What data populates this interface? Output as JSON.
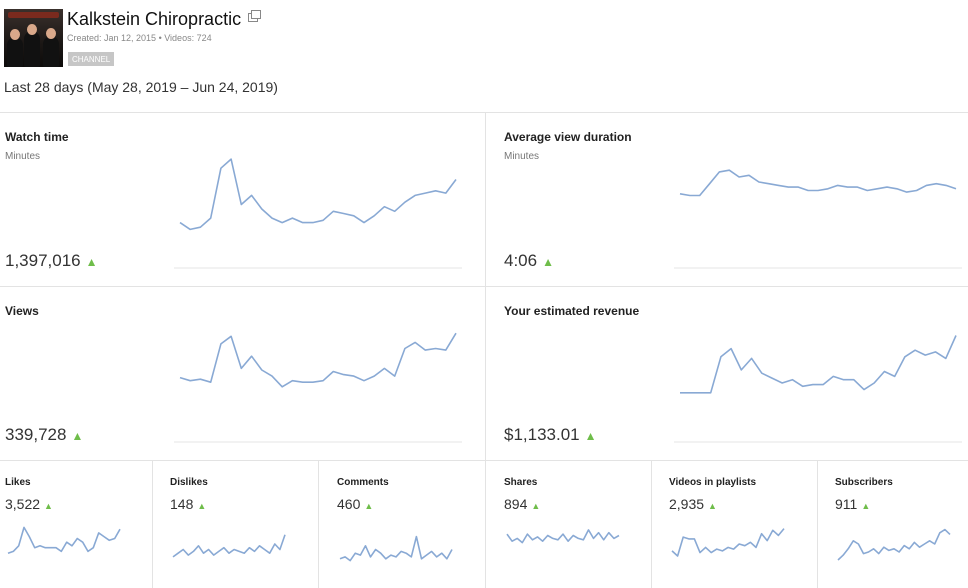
{
  "channel": {
    "name": "Kalkstein Chiropractic",
    "meta": "Created: Jan 12, 2015  •  Videos: 724",
    "badge": "CHANNEL"
  },
  "date_range": "Last 28 days (May 28, 2019 – Jun 24, 2019)",
  "trend_icon": "triangle-up-icon",
  "colors": {
    "line": "#89a9d4",
    "trend_up": "#6fbd4a",
    "divider": "#e3e3e3"
  },
  "cards": [
    {
      "title": "Watch time",
      "subtitle": "Minutes",
      "value": "1,397,016",
      "trend": "▲",
      "spark": [
        60,
        57,
        58,
        62,
        84,
        88,
        68,
        72,
        66,
        62,
        60,
        62,
        60,
        60,
        61,
        65,
        64,
        63,
        60,
        63,
        67,
        65,
        69,
        72,
        73,
        74,
        73,
        79
      ]
    },
    {
      "title": "Average view duration",
      "subtitle": "Minutes",
      "value": "4:06",
      "trend": "▲",
      "spark": [
        44,
        43,
        43,
        50,
        57,
        58,
        54,
        55,
        51,
        50,
        49,
        48,
        48,
        46,
        46,
        47,
        49,
        48,
        48,
        46,
        47,
        48,
        47,
        45,
        46,
        49,
        50,
        49,
        47
      ]
    },
    {
      "title": "Views",
      "subtitle": "",
      "value": "339,728",
      "trend": "▲",
      "spark": [
        42,
        40,
        41,
        39,
        64,
        69,
        48,
        56,
        47,
        43,
        36,
        40,
        39,
        39,
        40,
        46,
        44,
        43,
        40,
        43,
        48,
        43,
        61,
        65,
        60,
        61,
        60,
        71
      ]
    },
    {
      "title": "Your estimated revenue",
      "subtitle": "",
      "value": "$1,133.01",
      "trend": "▲",
      "spark": [
        30,
        30,
        30,
        30,
        52,
        57,
        44,
        51,
        42,
        39,
        36,
        38,
        34,
        35,
        35,
        40,
        38,
        38,
        32,
        36,
        43,
        40,
        52,
        56,
        53,
        55,
        51,
        65
      ]
    }
  ],
  "small_cards": [
    {
      "title": "Likes",
      "value": "3,522",
      "trend": "▲",
      "spark": [
        8,
        9,
        12,
        22,
        17,
        11,
        12,
        11,
        11,
        11,
        9,
        14,
        12,
        16,
        14,
        9,
        11,
        19,
        17,
        15,
        16,
        21
      ]
    },
    {
      "title": "Dislikes",
      "value": "148",
      "trend": "▲",
      "spark": [
        6,
        8,
        10,
        7,
        9,
        12,
        8,
        10,
        7,
        9,
        11,
        8,
        10,
        9,
        8,
        11,
        9,
        12,
        10,
        8,
        13,
        10,
        18
      ]
    },
    {
      "title": "Comments",
      "value": "460",
      "trend": "▲",
      "spark": [
        5,
        6,
        4,
        8,
        7,
        12,
        6,
        10,
        8,
        5,
        7,
        6,
        9,
        8,
        6,
        17,
        5,
        7,
        9,
        6,
        8,
        5,
        10
      ]
    },
    {
      "title": "Shares",
      "value": "894",
      "trend": "▲",
      "spark": [
        24,
        19,
        21,
        18,
        24,
        20,
        22,
        19,
        23,
        21,
        20,
        24,
        19,
        23,
        21,
        20,
        27,
        21,
        25,
        20,
        25,
        21,
        23
      ]
    },
    {
      "title": "Videos in playlists",
      "value": "2,935",
      "trend": "▲",
      "spark": [
        10,
        7,
        18,
        17,
        17,
        9,
        12,
        9,
        11,
        10,
        12,
        11,
        14,
        13,
        15,
        12,
        20,
        16,
        22,
        19,
        23
      ]
    },
    {
      "title": "Subscribers",
      "value": "911",
      "trend": "▲",
      "spark": [
        5,
        8,
        12,
        17,
        15,
        9,
        10,
        12,
        9,
        13,
        11,
        12,
        10,
        14,
        12,
        16,
        13,
        15,
        17,
        15,
        22,
        24,
        21
      ]
    }
  ]
}
